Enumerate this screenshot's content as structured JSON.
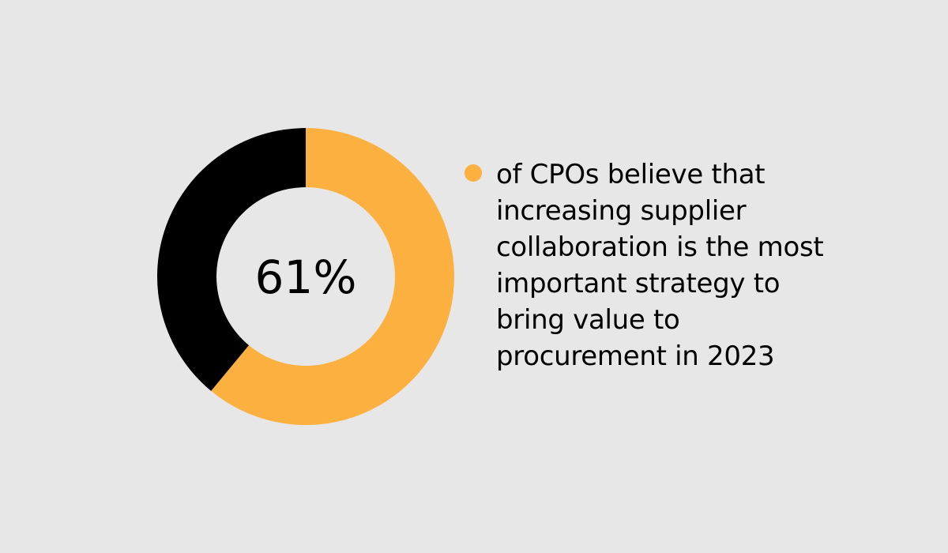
{
  "chart_data": {
    "type": "pie",
    "variant": "donut",
    "center_label": "61%",
    "slices": [
      {
        "value": 61,
        "color": "#fbb040"
      },
      {
        "value": 39,
        "color": "#000000"
      }
    ],
    "legend": {
      "marker_color": "#fbb040",
      "text": "of CPOs believe that increasing supplier collaboration is the most important strategy to bring value to procurement in 2023",
      "placement": "right"
    }
  },
  "colors": {
    "background": "#e7e7e7",
    "accent": "#fbb040",
    "dark": "#000000"
  }
}
